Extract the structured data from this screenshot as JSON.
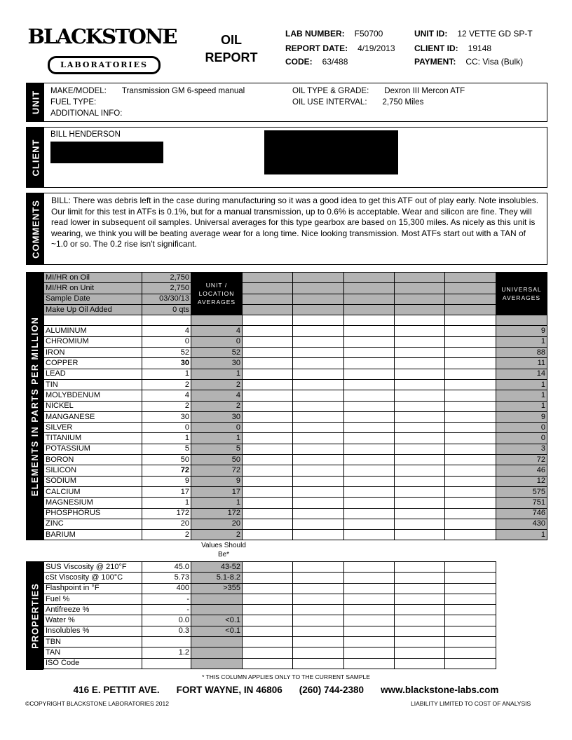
{
  "logo": {
    "name": "BLACKSTONE",
    "sub": "LABORATORIES"
  },
  "title": [
    "OIL",
    "REPORT"
  ],
  "header": {
    "lab_number_label": "LAB NUMBER:",
    "lab_number": "F50700",
    "report_date_label": "REPORT DATE:",
    "report_date": "4/19/2013",
    "code_label": "CODE:",
    "code": "63/488",
    "unit_id_label": "UNIT ID:",
    "unit_id": "12 VETTE GD SP-T",
    "client_id_label": "CLIENT ID:",
    "client_id": "19148",
    "payment_label": "PAYMENT:",
    "payment": "CC: Visa (Bulk)"
  },
  "unit": {
    "section": "UNIT",
    "make_label": "MAKE/MODEL:",
    "make": "Transmission GM 6-speed manual",
    "fuel_label": "FUEL TYPE:",
    "info_label": "ADDITIONAL INFO:",
    "oil_label": "OIL TYPE & GRADE:",
    "oil": "Dexron III Mercon ATF",
    "interval_label": "OIL USE INTERVAL:",
    "interval": "2,750 Miles"
  },
  "client": {
    "section": "CLIENT",
    "name": "BILL HENDERSON"
  },
  "comments": {
    "section": "COMMENTS",
    "text": "BILL:  There was debris left in the case during manufacturing so it was a good idea to get this ATF out of play early.  Note insolubles. Our limit for this test in ATFs is 0.1%, but for a manual transmission, up to 0.6% is acceptable.  Wear and silicon are fine.  They will read lower in subsequent oil samples.  Universal averages for this type gearbox are based on 15,300 miles.  As nicely as this unit is wearing, we think you will be beating average wear for a long time.  Nice looking transmission. Most ATFs start out with a TAN of ~1.0 or so.  The 0.2 rise isn't significant."
  },
  "elements": {
    "section": "ELEMENTS IN PARTS PER MILLION",
    "unit_avg_header": "UNIT / LOCATION AVERAGES",
    "universal_header": "UNIVERSAL AVERAGES",
    "sample_info": [
      {
        "label": "MI/HR on Oil",
        "value": "2,750"
      },
      {
        "label": "MI/HR on Unit",
        "value": "2,750"
      },
      {
        "label": "Sample Date",
        "value": "03/30/13"
      },
      {
        "label": "Make Up Oil Added",
        "value": "0 qts"
      }
    ],
    "rows": [
      {
        "name": "ALUMINUM",
        "value": "4",
        "avg": "4",
        "universal": "9"
      },
      {
        "name": "CHROMIUM",
        "value": "0",
        "avg": "0",
        "universal": "1"
      },
      {
        "name": "IRON",
        "value": "52",
        "avg": "52",
        "universal": "88"
      },
      {
        "name": "COPPER",
        "value": "30",
        "avg": "30",
        "universal": "11",
        "bold": true
      },
      {
        "name": "LEAD",
        "value": "1",
        "avg": "1",
        "universal": "14"
      },
      {
        "name": "TIN",
        "value": "2",
        "avg": "2",
        "universal": "1"
      },
      {
        "name": "MOLYBDENUM",
        "value": "4",
        "avg": "4",
        "universal": "1"
      },
      {
        "name": "NICKEL",
        "value": "2",
        "avg": "2",
        "universal": "1"
      },
      {
        "name": "MANGANESE",
        "value": "30",
        "avg": "30",
        "universal": "9"
      },
      {
        "name": "SILVER",
        "value": "0",
        "avg": "0",
        "universal": "0"
      },
      {
        "name": "TITANIUM",
        "value": "1",
        "avg": "1",
        "universal": "0"
      },
      {
        "name": "POTASSIUM",
        "value": "5",
        "avg": "5",
        "universal": "3"
      },
      {
        "name": "BORON",
        "value": "50",
        "avg": "50",
        "universal": "72"
      },
      {
        "name": "SILICON",
        "value": "72",
        "avg": "72",
        "universal": "46",
        "bold": true
      },
      {
        "name": "SODIUM",
        "value": "9",
        "avg": "9",
        "universal": "12"
      },
      {
        "name": "CALCIUM",
        "value": "17",
        "avg": "17",
        "universal": "575"
      },
      {
        "name": "MAGNESIUM",
        "value": "1",
        "avg": "1",
        "universal": "751"
      },
      {
        "name": "PHOSPHORUS",
        "value": "172",
        "avg": "172",
        "universal": "746"
      },
      {
        "name": "ZINC",
        "value": "20",
        "avg": "20",
        "universal": "430"
      },
      {
        "name": "BARIUM",
        "value": "2",
        "avg": "2",
        "universal": "1"
      }
    ]
  },
  "properties": {
    "section": "PROPERTIES",
    "should_be_header": "Values Should Be*",
    "rows": [
      {
        "name": "SUS Viscosity @ 210°F",
        "value": "45.0",
        "should": "43-52"
      },
      {
        "name": "cSt Viscosity @ 100°C",
        "value": "5.73",
        "should": "5.1-8.2"
      },
      {
        "name": "Flashpoint in °F",
        "value": "400",
        "should": ">355"
      },
      {
        "name": "Fuel %",
        "value": "-",
        "should": ""
      },
      {
        "name": "Antifreeze %",
        "value": "-",
        "should": ""
      },
      {
        "name": "Water %",
        "value": "0.0",
        "should": "<0.1"
      },
      {
        "name": "Insolubles %",
        "value": "0.3",
        "should": "<0.1"
      },
      {
        "name": "TBN",
        "value": "",
        "should": ""
      },
      {
        "name": "TAN",
        "value": "1.2",
        "should": ""
      },
      {
        "name": "ISO Code",
        "value": "",
        "should": ""
      }
    ]
  },
  "footer": {
    "note": "* THIS COLUMN APPLIES ONLY TO THE CURRENT SAMPLE",
    "address": "416 E. PETTIT AVE.",
    "city": "FORT WAYNE, IN  46806",
    "phone": "(260) 744-2380",
    "web": "www.blackstone-labs.com",
    "copyright": "©COPYRIGHT BLACKSTONE LABORATORIES 2012",
    "liability": "LIABILITY LIMITED TO COST OF ANALYSIS"
  }
}
